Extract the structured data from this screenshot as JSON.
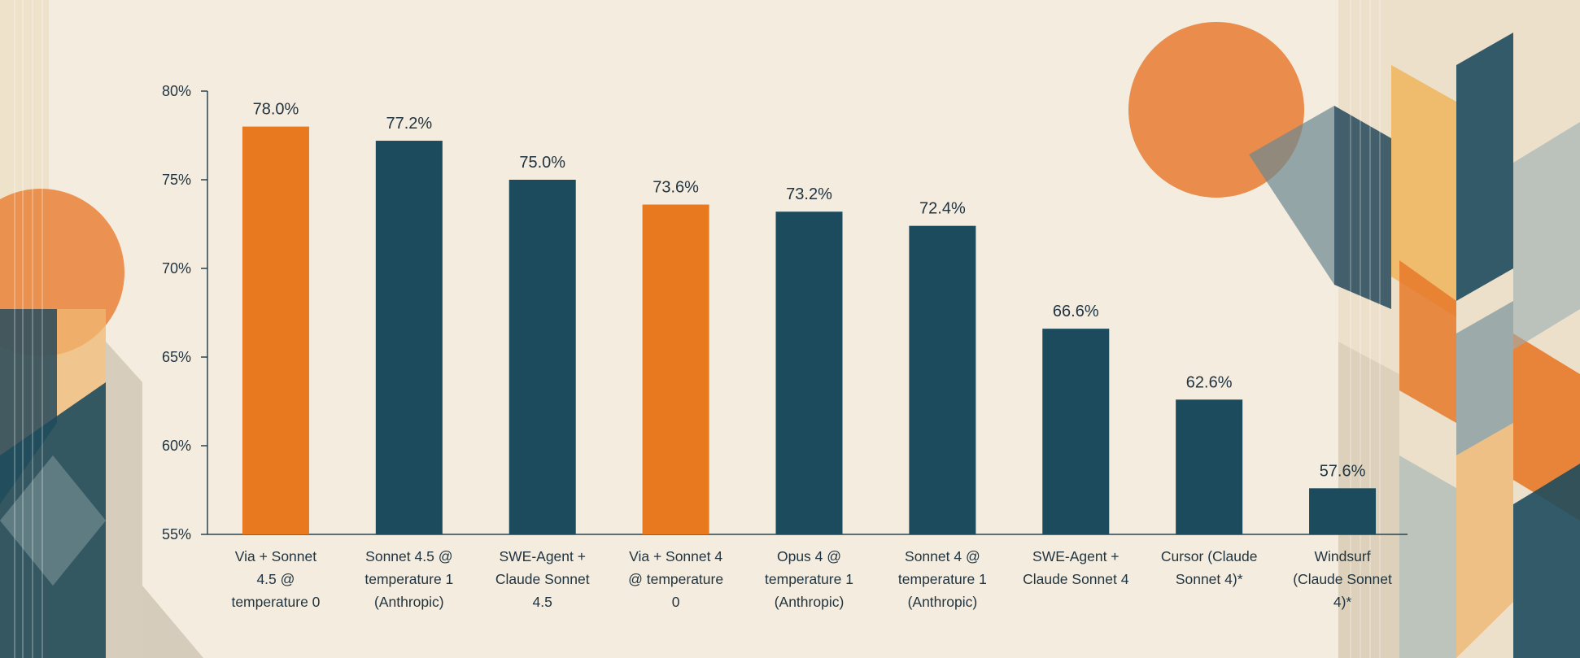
{
  "colors": {
    "background": "#f4ecde",
    "highlight": "#e8791f",
    "default": "#1b4b5c",
    "axis": "#2a4452",
    "text": "#1f3340"
  },
  "chart_data": {
    "type": "bar",
    "title": "",
    "xlabel": "",
    "ylabel": "",
    "ylim": [
      55,
      80
    ],
    "yticks": [
      "55%",
      "60%",
      "65%",
      "70%",
      "75%",
      "80%"
    ],
    "ytick_values": [
      55,
      60,
      65,
      70,
      75,
      80
    ],
    "grid": false,
    "legend": "none",
    "categories": [
      [
        "Via + Sonnet",
        "4.5 @",
        "temperature 0"
      ],
      [
        "Sonnet 4.5 @",
        "temperature 1",
        "(Anthropic)"
      ],
      [
        "SWE-Agent +",
        "Claude Sonnet",
        "4.5"
      ],
      [
        "Via + Sonnet 4",
        "@ temperature",
        "0"
      ],
      [
        "Opus 4 @",
        "temperature 1",
        "(Anthropic)"
      ],
      [
        "Sonnet 4 @",
        "temperature 1",
        "(Anthropic)"
      ],
      [
        "SWE-Agent +",
        "Claude Sonnet 4"
      ],
      [
        "Cursor (Claude",
        "Sonnet 4)*"
      ],
      [
        "Windsurf",
        "(Claude Sonnet",
        "4)*"
      ]
    ],
    "values": [
      78.0,
      77.2,
      75.0,
      73.6,
      73.2,
      72.4,
      66.6,
      62.6,
      57.6
    ],
    "value_labels": [
      "78.0%",
      "77.2%",
      "75.0%",
      "73.6%",
      "73.2%",
      "72.4%",
      "66.6%",
      "62.6%",
      "57.6%"
    ],
    "highlighted": [
      true,
      false,
      false,
      true,
      false,
      false,
      false,
      false,
      false
    ]
  }
}
